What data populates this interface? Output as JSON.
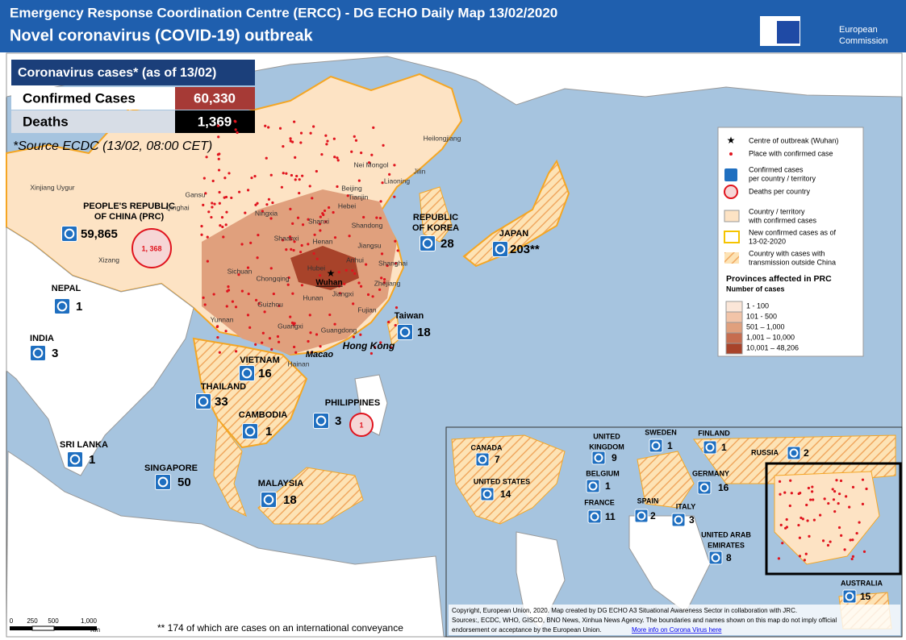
{
  "header": {
    "title": "Emergency Response Coordination Centre (ERCC) - DG ECHO Daily Map 13/02/2020",
    "subtitle": "Novel coronavirus (COVID-19) outbreak",
    "logo_lines": [
      "European",
      "Commission"
    ]
  },
  "summary": {
    "title": "Coronavirus cases* (as of 13/02)",
    "rows": [
      [
        "Confirmed Cases",
        "60,330"
      ],
      [
        "Deaths",
        "1,369"
      ]
    ],
    "source": "*Source ECDC (13/02, 08:00 CET)"
  },
  "countries": [
    {
      "name": [
        "PEOPLE'S REPUBLIC",
        "OF CHINA (PRC)"
      ],
      "cases": "59,865"
    },
    {
      "name": [
        "NEPAL"
      ],
      "cases": "1"
    },
    {
      "name": [
        "INDIA"
      ],
      "cases": "3"
    },
    {
      "name": [
        "VIETNAM"
      ],
      "cases": "16"
    },
    {
      "name": [
        "THAILAND"
      ],
      "cases": "33"
    },
    {
      "name": [
        "CAMBODIA"
      ],
      "cases": "1"
    },
    {
      "name": [
        "PHILIPPINES"
      ],
      "cases": "3"
    },
    {
      "name": [
        "SRI LANKA"
      ],
      "cases": "1"
    },
    {
      "name": [
        "SINGAPORE"
      ],
      "cases": "50"
    },
    {
      "name": [
        "MALAYSIA"
      ],
      "cases": "18"
    },
    {
      "name": [
        "Taiwan"
      ],
      "cases": "18"
    },
    {
      "name": [
        "REPUBLIC",
        "OF KOREA"
      ],
      "cases": "28"
    },
    {
      "name": [
        "JAPAN"
      ],
      "cases": "203**"
    }
  ],
  "deaths": [
    "1, 368",
    "1"
  ],
  "places": [
    "Wuhan",
    "Hong Kong",
    "Macao"
  ],
  "provinces": [
    "Heilongjiang",
    "Jilin",
    "Liaoning",
    "Nei Mongol",
    "Beijing",
    "Tianjin",
    "Hebei",
    "Shanxi",
    "Shandong",
    "Henan",
    "Jiangsu",
    "Anhui",
    "Hubei",
    "Shanghai",
    "Zhejiang",
    "Jiangxi",
    "Hunan",
    "Fujian",
    "Guangdong",
    "Guangxi",
    "Guizhou",
    "Yunnan",
    "Sichuan",
    "Chongqing",
    "Shaanxi",
    "Ningxia",
    "Gansu",
    "Qinghai",
    "Xinjiang Uygur",
    "Xizang",
    "Hainan"
  ],
  "legend": {
    "items": [
      [
        "Centre of outbreak (Wuhan)"
      ],
      [
        "Place with confirmed case"
      ],
      [
        "Confirmed cases",
        "per country / territory"
      ],
      [
        "Deaths per country"
      ],
      [
        "Country / territory",
        "with confirmed cases"
      ],
      [
        "New confirmed cases as of",
        "13-02-2020"
      ],
      [
        "Country with cases with",
        "transmission outside China"
      ]
    ],
    "provinces_title": "Provinces affected in PRC",
    "provinces_subtitle": "Number of cases",
    "classes": [
      "1 - 100",
      "101 - 500",
      "501 – 1,000",
      "1,001 – 10,000",
      "10,001 – 48,206"
    ]
  },
  "inset": {
    "countries": [
      {
        "name": [
          "CANADA"
        ],
        "cases": "7"
      },
      {
        "name": [
          "UNITED STATES"
        ],
        "cases": "14"
      },
      {
        "name": [
          "UNITED",
          "KINGDOM"
        ],
        "cases": "9"
      },
      {
        "name": [
          "BELGIUM"
        ],
        "cases": "1"
      },
      {
        "name": [
          "FRANCE"
        ],
        "cases": "11"
      },
      {
        "name": [
          "SPAIN"
        ],
        "cases": "2"
      },
      {
        "name": [
          "ITALY"
        ],
        "cases": "3"
      },
      {
        "name": [
          "SWEDEN"
        ],
        "cases": "1"
      },
      {
        "name": [
          "FINLAND"
        ],
        "cases": "1"
      },
      {
        "name": [
          "GERMANY"
        ],
        "cases": "16"
      },
      {
        "name": [
          "RUSSIA"
        ],
        "cases": "2"
      },
      {
        "name": [
          "UNITED ARAB",
          "EMIRATES"
        ],
        "cases": "8"
      },
      {
        "name": [
          "AUSTRALIA"
        ],
        "cases": "15"
      }
    ]
  },
  "scale": {
    "ticks": [
      "0",
      "250",
      "500",
      "1,000"
    ],
    "unit": "Km"
  },
  "note": "** 174 of which are cases on an international conveyance",
  "credits": [
    "Copyright, European Union, 2020. Map created by DG ECHO A3 Situational Awareness Sector in collaboration with JRC.",
    "Sources:, ECDC, WHO, GISCO, BNO News, Xinhua News Agency. The boundaries and names shown on this map do not imply official",
    "endorsement or acceptance by the European Union."
  ],
  "link": "More info on Corona Virus here"
}
